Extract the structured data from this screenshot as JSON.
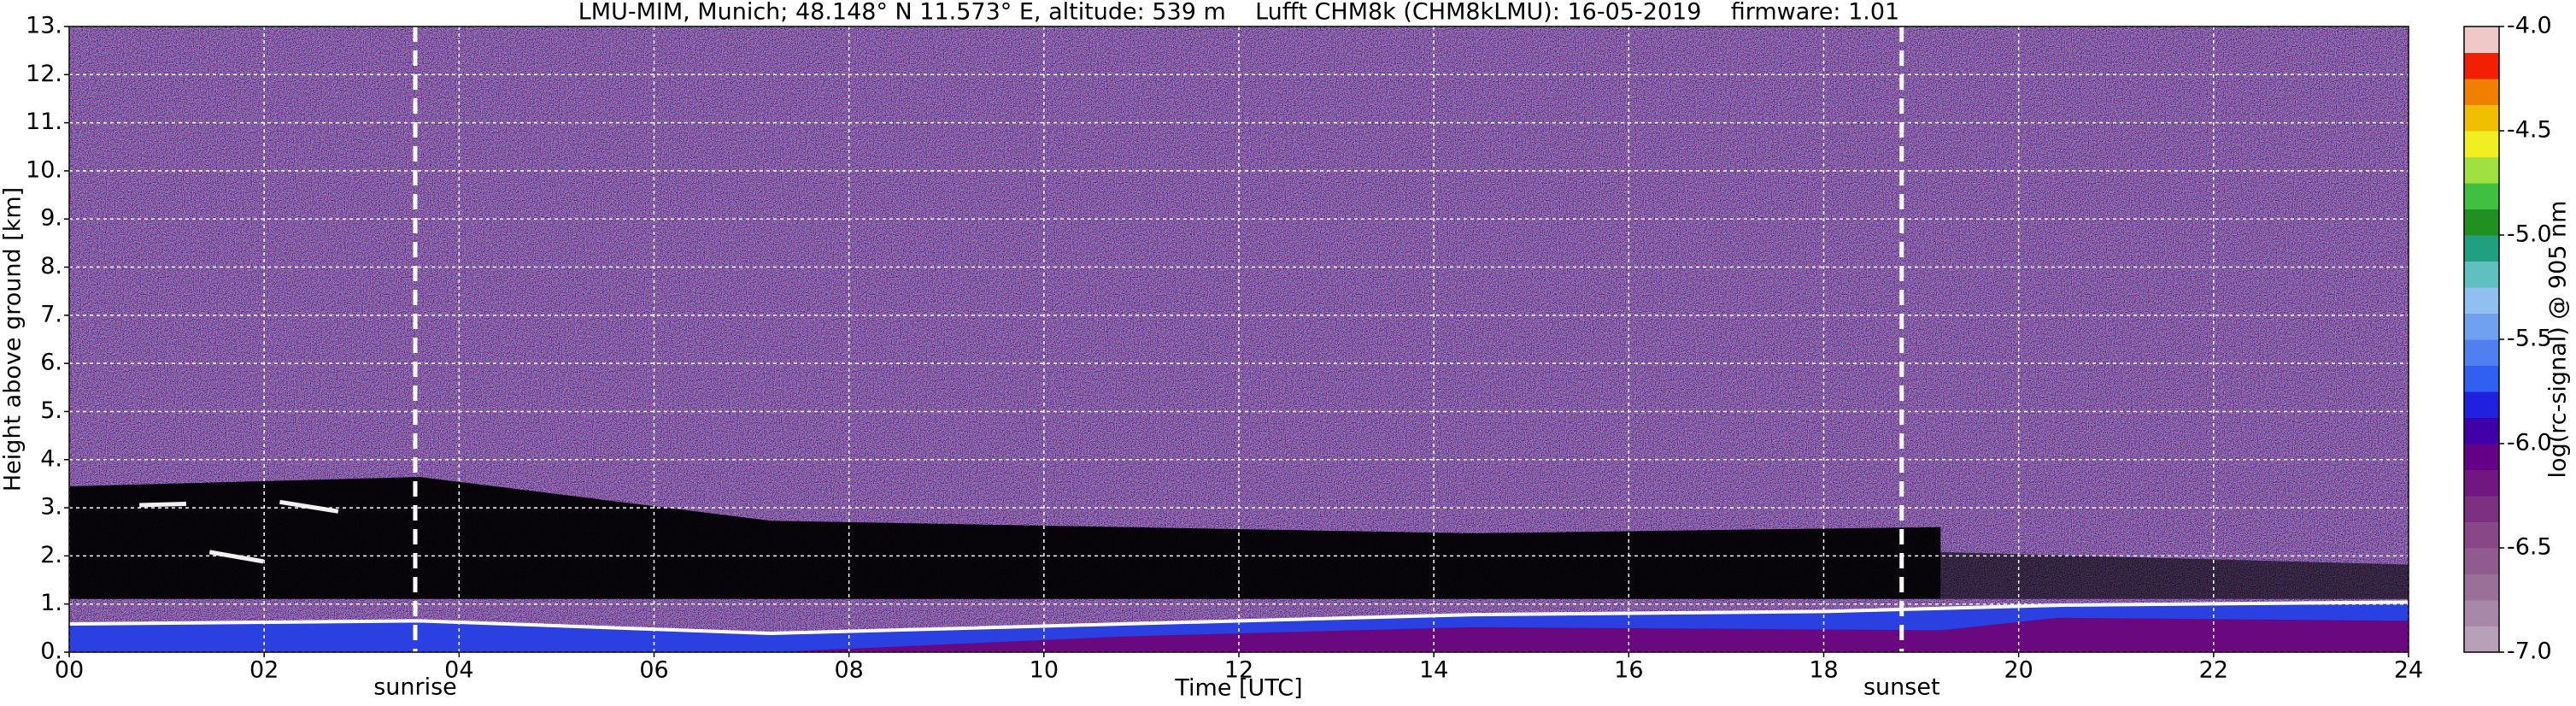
{
  "chart_data": {
    "type": "heatmap",
    "title": "LMU-MIM, Munich; 48.148° N 11.573° E, altitude: 539 m    Lufft CHM8k (CHM8kLMU): 16-05-2019    firmware: 1.01",
    "xlabel": "Time [UTC]",
    "ylabel": "Height above ground [km]",
    "xlim": [
      0,
      24
    ],
    "xticks": [
      {
        "value": 0,
        "label": "00"
      },
      {
        "value": 2,
        "label": "02"
      },
      {
        "value": 4,
        "label": "04"
      },
      {
        "value": 6,
        "label": "06"
      },
      {
        "value": 8,
        "label": "08"
      },
      10,
      12,
      14,
      16,
      18,
      20,
      22,
      24
    ],
    "ylim": [
      0,
      13
    ],
    "yticks": [
      {
        "value": 0,
        "label": "0."
      },
      {
        "value": 1,
        "label": "1."
      },
      {
        "value": 2,
        "label": "2."
      },
      {
        "value": 3,
        "label": "3."
      },
      {
        "value": 4,
        "label": "4."
      },
      {
        "value": 5,
        "label": "5."
      },
      {
        "value": 6,
        "label": "6."
      },
      {
        "value": 7,
        "label": "7."
      },
      {
        "value": 8,
        "label": "8."
      },
      {
        "value": 9,
        "label": "9."
      },
      {
        "value": 10,
        "label": "10."
      },
      {
        "value": 11,
        "label": "11."
      },
      {
        "value": 12,
        "label": "12."
      },
      {
        "value": 13,
        "label": "13."
      }
    ],
    "grid": true,
    "annotations": [
      {
        "text": "sunrise",
        "x": 3.55
      },
      {
        "text": "sunset",
        "x": 18.8
      }
    ],
    "colorbar": {
      "label": "log(rc-signal) @ 905 nm",
      "lim": [
        -7,
        -4
      ],
      "ticks": [
        {
          "value": -7,
          "label": "-7.0"
        },
        {
          "value": -6.5,
          "label": "-6.5"
        },
        {
          "value": -6,
          "label": "-6.0"
        },
        {
          "value": -5.5,
          "label": "-5.5"
        },
        {
          "value": -5,
          "label": "-5.0"
        },
        {
          "value": -4.5,
          "label": "-4.5"
        },
        {
          "value": -4,
          "label": "-4.0"
        }
      ],
      "colors": [
        "#b8a0b8",
        "#a888a8",
        "#987098",
        "#905c90",
        "#884888",
        "#7c3080",
        "#701880",
        "#640088",
        "#4000a8",
        "#2020e0",
        "#3060f0",
        "#5080f0",
        "#70a0f0",
        "#90c0f0",
        "#60c0c0",
        "#20a080",
        "#209020",
        "#40c040",
        "#a0e040",
        "#f0f020",
        "#f0c000",
        "#f08000",
        "#f02000",
        "#f0c8c8"
      ]
    }
  }
}
